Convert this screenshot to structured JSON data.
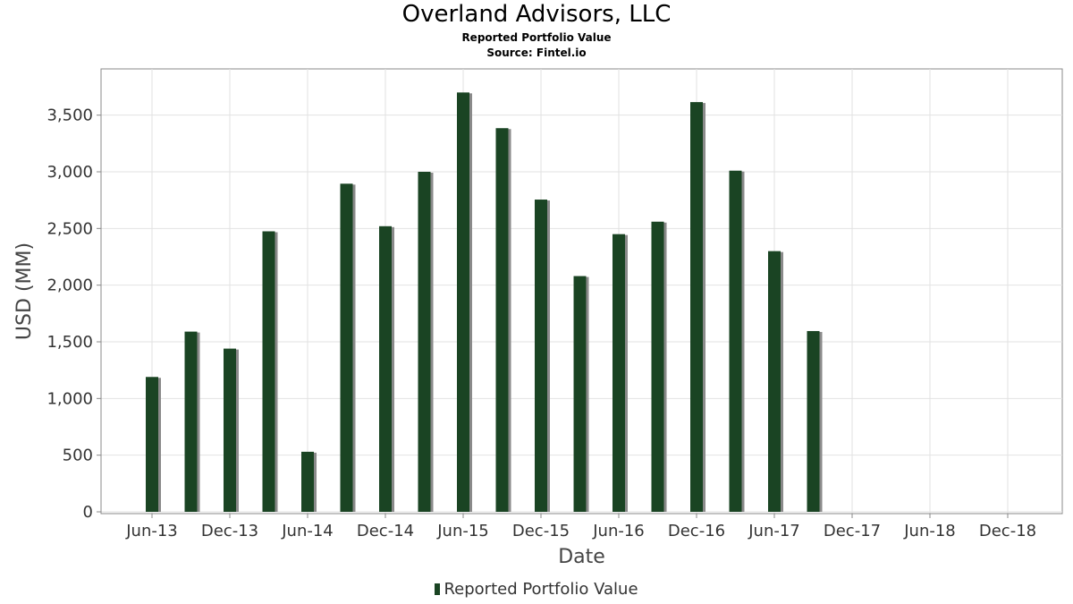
{
  "chart_data": {
    "type": "bar",
    "title": "Overland Advisors, LLC",
    "subtitle": "Reported Portfolio Value",
    "source": "Source: Fintel.io",
    "xlabel": "Date",
    "ylabel": "USD (MM)",
    "ylim": [
      0,
      3900
    ],
    "yticks": [
      "0",
      "500",
      "1,000",
      "1,500",
      "2,000",
      "2,500",
      "3,000",
      "3,500"
    ],
    "ytick_values": [
      0,
      500,
      1000,
      1500,
      2000,
      2500,
      3000,
      3500
    ],
    "xticks": [
      "Jun-13",
      "Dec-13",
      "Jun-14",
      "Dec-14",
      "Jun-15",
      "Dec-15",
      "Jun-16",
      "Dec-16",
      "Jun-17",
      "Dec-17",
      "Jun-18",
      "Dec-18"
    ],
    "grid": true,
    "legend_position": "bottom",
    "bar_color": "#1a4423",
    "series": [
      {
        "name": "Reported Portfolio Value",
        "categories": [
          "Jun-13",
          "Sep-13",
          "Dec-13",
          "Mar-14",
          "Jun-14",
          "Sep-14",
          "Dec-14",
          "Mar-15",
          "Jun-15",
          "Sep-15",
          "Dec-15",
          "Mar-16",
          "Jun-16",
          "Sep-16",
          "Dec-16",
          "Mar-17",
          "Jun-17",
          "Sep-17"
        ],
        "values": [
          1190,
          1590,
          1440,
          2475,
          530,
          2895,
          2520,
          3000,
          3700,
          3385,
          2755,
          2080,
          2450,
          2560,
          3615,
          3010,
          2300,
          1595
        ]
      }
    ]
  }
}
